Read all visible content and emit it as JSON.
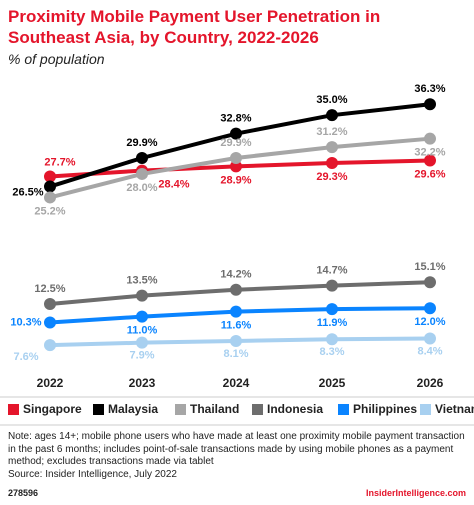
{
  "chart_data": {
    "type": "line",
    "title": "Proximity Mobile Payment User Penetration in Southeast Asia, by Country, 2022-2026",
    "subtitle": "% of population",
    "categories": [
      "2022",
      "2023",
      "2024",
      "2025",
      "2026"
    ],
    "ylim": [
      5,
      38
    ],
    "series": [
      {
        "name": "Singapore",
        "color": "#e4152b",
        "values": [
          27.7,
          28.4,
          28.9,
          29.3,
          29.6
        ],
        "value_labels": [
          "27.7%",
          "28.4%",
          "28.9%",
          "29.3%",
          "29.6%"
        ]
      },
      {
        "name": "Malaysia",
        "color": "#000000",
        "values": [
          26.5,
          29.9,
          32.8,
          35.0,
          36.3
        ],
        "value_labels": [
          "26.5%",
          "29.9%",
          "32.8%",
          "35.0%",
          "36.3%"
        ]
      },
      {
        "name": "Thailand",
        "color": "#a6a6a6",
        "values": [
          25.2,
          28.0,
          29.9,
          31.2,
          32.2
        ],
        "value_labels": [
          "25.2%",
          "28.0%",
          "29.9%",
          "31.2%",
          "32.2%"
        ]
      },
      {
        "name": "Indonesia",
        "color": "#6d6d6d",
        "values": [
          12.5,
          13.5,
          14.2,
          14.7,
          15.1
        ],
        "value_labels": [
          "12.5%",
          "13.5%",
          "14.2%",
          "14.7%",
          "15.1%"
        ]
      },
      {
        "name": "Philippines",
        "color": "#0a84ff",
        "values": [
          10.3,
          11.0,
          11.6,
          11.9,
          12.0
        ],
        "value_labels": [
          "10.3%",
          "11.0%",
          "11.6%",
          "11.9%",
          "12.0%"
        ]
      },
      {
        "name": "Vietnam",
        "color": "#a8d0f0",
        "values": [
          7.6,
          7.9,
          8.1,
          8.3,
          8.4
        ],
        "value_labels": [
          "7.6%",
          "7.9%",
          "8.1%",
          "8.3%",
          "8.4%"
        ]
      }
    ],
    "note": "Note: ages 14+; mobile phone users who have made at least one proximity mobile payment transaction in the past 6 months; includes point-of-sale transactions made by using mobile phones as a payment method; excludes transactions made via tablet",
    "source": "Source: Insider Intelligence, July 2022",
    "chart_id": "278596",
    "brand": "InsiderIntelligence.com"
  }
}
